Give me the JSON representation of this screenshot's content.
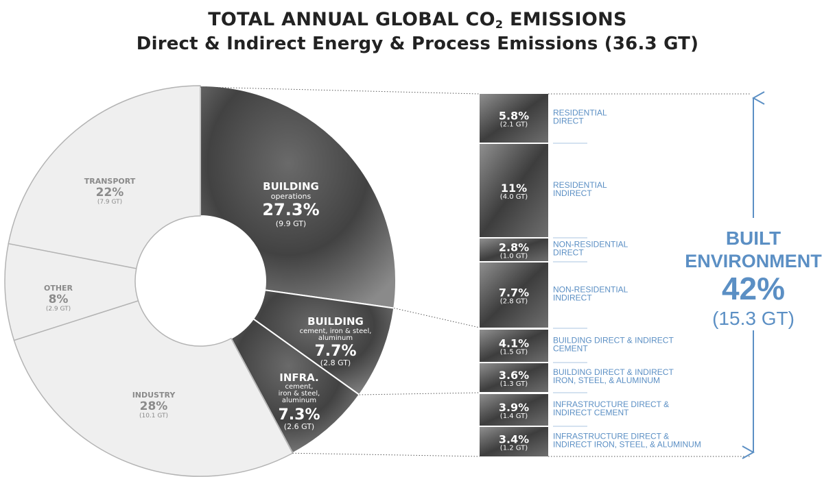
{
  "title_line1": "TOTAL ANNUAL GLOBAL CO",
  "title_sub": "2",
  "title_line1_end": " EMISSIONS",
  "title_line2": "Direct & Indirect Energy & Process Emissions (36.3 GT)",
  "colors": {
    "light_slice": "#efefef",
    "dark_slice": "#3c3c3c",
    "accent": "#5b8fc4",
    "divider": "#b3b3b3"
  },
  "chart_data": {
    "type": "pie",
    "total_gt": 36.3,
    "slices": [
      {
        "key": "building_ops",
        "name": "BUILDING",
        "sub": "operations",
        "pct": 27.3,
        "pct_label": "27.3%",
        "gt_label": "(9.9 GT)",
        "style": "dark"
      },
      {
        "key": "building_mat",
        "name": "BUILDING",
        "sub": "cement, iron & steel, aluminum",
        "pct": 7.7,
        "pct_label": "7.7%",
        "gt_label": "(2.8 GT)",
        "style": "dark"
      },
      {
        "key": "infra",
        "name": "INFRA.",
        "sub": "cement, iron & steel, aluminum",
        "pct": 7.3,
        "pct_label": "7.3%",
        "gt_label": "(2.6 GT)",
        "style": "dark"
      },
      {
        "key": "industry",
        "name": "INDUSTRY",
        "pct": 28,
        "pct_label": "28%",
        "gt_label": "(10.1 GT)",
        "style": "light"
      },
      {
        "key": "other",
        "name": "OTHER",
        "pct": 8,
        "pct_label": "8%",
        "gt_label": "(2.9 GT)",
        "style": "light"
      },
      {
        "key": "transport",
        "name": "TRANSPORT",
        "pct": 22,
        "pct_label": "22%",
        "gt_label": "(7.9 GT)",
        "style": "light"
      }
    ],
    "breakdown": [
      {
        "pct_label": "5.8%",
        "gt_label": "(2.1 GT)",
        "label": [
          "RESIDENTIAL",
          "DIRECT"
        ]
      },
      {
        "pct_label": "11%",
        "gt_label": "(4.0 GT)",
        "label": [
          "RESIDENTIAL",
          "INDIRECT"
        ]
      },
      {
        "pct_label": "2.8%",
        "gt_label": "(1.0 GT)",
        "label": [
          "NON-RESIDENTIAL",
          "DIRECT"
        ]
      },
      {
        "pct_label": "7.7%",
        "gt_label": "(2.8 GT)",
        "label": [
          "NON-RESIDENTIAL",
          "INDIRECT"
        ]
      },
      {
        "pct_label": "4.1%",
        "gt_label": "(1.5 GT)",
        "label": [
          "BUILDING DIRECT & INDIRECT",
          "CEMENT"
        ]
      },
      {
        "pct_label": "3.6%",
        "gt_label": "(1.3 GT)",
        "label": [
          "BUILDING DIRECT & INDIRECT",
          "IRON, STEEL, & ALUMINUM"
        ]
      },
      {
        "pct_label": "3.9%",
        "gt_label": "(1.4 GT)",
        "label": [
          "INFRASTRUCTURE DIRECT &",
          "INDIRECT CEMENT"
        ]
      },
      {
        "pct_label": "3.4%",
        "gt_label": "(1.2 GT)",
        "label": [
          "INFRASTRUCTURE DIRECT &",
          "INDIRECT IRON, STEEL, & ALUMINUM"
        ]
      }
    ],
    "summary": {
      "line1": "BUILT",
      "line2": "ENVIRONMENT",
      "pct_label": "42%",
      "gt_label": "(15.3 GT)"
    }
  }
}
